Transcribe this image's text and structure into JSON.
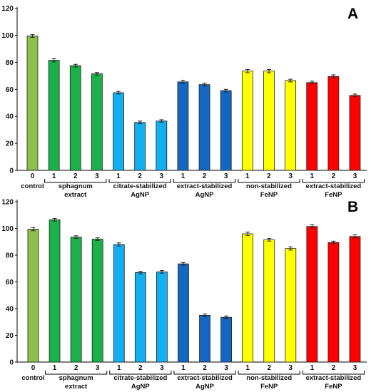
{
  "chart_data": [
    {
      "type": "bar",
      "panel_label": "A",
      "ylim": [
        0,
        120
      ],
      "yticks": [
        0,
        20,
        40,
        60,
        80,
        100,
        120
      ],
      "categories": [
        "0",
        "1",
        "2",
        "3",
        "1",
        "2",
        "3",
        "1",
        "2",
        "3",
        "1",
        "2",
        "3",
        "1",
        "2",
        "3"
      ],
      "values": [
        99.5,
        81.5,
        77.5,
        71.5,
        57.5,
        35.5,
        36.5,
        65.5,
        63.5,
        59,
        73.5,
        73.5,
        66.5,
        65,
        69.5,
        55.5
      ],
      "errors": [
        1,
        1.2,
        1,
        1,
        1,
        1,
        1,
        1.2,
        1,
        1,
        1.2,
        1.2,
        1,
        1,
        1.2,
        1
      ],
      "colors": [
        "#8cbf4e",
        "#1ab04a",
        "#1ab04a",
        "#1ab04a",
        "#13b0ef",
        "#13b0ef",
        "#13b0ef",
        "#1467c0",
        "#1467c0",
        "#1467c0",
        "#ffff00",
        "#ffff00",
        "#ffff00",
        "#ff0000",
        "#ff0000",
        "#ff0000"
      ],
      "groups": [
        {
          "lines": [
            "control"
          ],
          "start": 0,
          "end": 0,
          "bracket": false
        },
        {
          "lines": [
            "sphagnum",
            "extract"
          ],
          "start": 1,
          "end": 3,
          "bracket": true
        },
        {
          "lines": [
            "citrate-stabilized",
            "AgNP"
          ],
          "start": 4,
          "end": 6,
          "bracket": true
        },
        {
          "lines": [
            "extract-stabilized",
            "AgNP"
          ],
          "start": 7,
          "end": 9,
          "bracket": true
        },
        {
          "lines": [
            "non-stabilized",
            "FeNP"
          ],
          "start": 10,
          "end": 12,
          "bracket": true
        },
        {
          "lines": [
            "extract-stabilized",
            "FeNP"
          ],
          "start": 13,
          "end": 15,
          "bracket": true
        }
      ]
    },
    {
      "type": "bar",
      "panel_label": "B",
      "ylim": [
        0,
        120
      ],
      "yticks": [
        0,
        20,
        40,
        60,
        80,
        100,
        120
      ],
      "categories": [
        "0",
        "1",
        "2",
        "3",
        "1",
        "2",
        "3",
        "1",
        "2",
        "3",
        "1",
        "2",
        "3",
        "1",
        "2",
        "3"
      ],
      "values": [
        99.5,
        106.5,
        93.5,
        92,
        88,
        67,
        67.5,
        73.5,
        35,
        33.5,
        96,
        91.5,
        85,
        101.5,
        89.5,
        94
      ],
      "errors": [
        1.2,
        1,
        1,
        1,
        1.2,
        1,
        1,
        1,
        1,
        1,
        1.2,
        1,
        1.2,
        1.2,
        1,
        1.2
      ],
      "colors": [
        "#8cbf4e",
        "#1ab04a",
        "#1ab04a",
        "#1ab04a",
        "#13b0ef",
        "#13b0ef",
        "#13b0ef",
        "#1467c0",
        "#1467c0",
        "#1467c0",
        "#ffff00",
        "#ffff00",
        "#ffff00",
        "#ff0000",
        "#ff0000",
        "#ff0000"
      ],
      "groups": [
        {
          "lines": [
            "control"
          ],
          "start": 0,
          "end": 0,
          "bracket": false
        },
        {
          "lines": [
            "sphagnum",
            "extract"
          ],
          "start": 1,
          "end": 3,
          "bracket": true
        },
        {
          "lines": [
            "citrate-stabilized",
            "AgNP"
          ],
          "start": 4,
          "end": 6,
          "bracket": true
        },
        {
          "lines": [
            "extract-stabilized",
            "AgNP"
          ],
          "start": 7,
          "end": 9,
          "bracket": true
        },
        {
          "lines": [
            "non-stabilized",
            "FeNP"
          ],
          "start": 10,
          "end": 12,
          "bracket": true
        },
        {
          "lines": [
            "extract-stabilized",
            "FeNP"
          ],
          "start": 13,
          "end": 15,
          "bracket": true
        }
      ]
    }
  ]
}
